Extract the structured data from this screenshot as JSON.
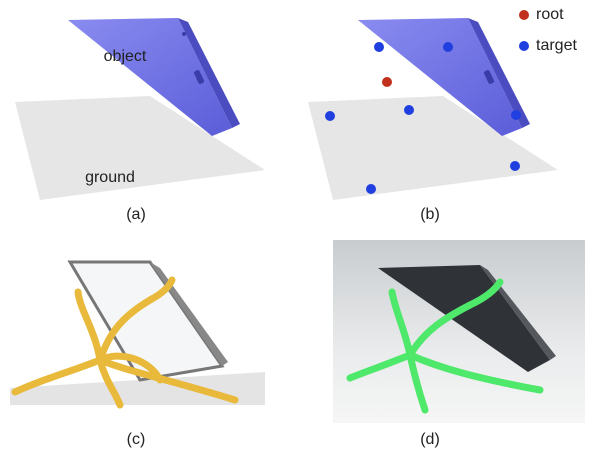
{
  "labels": {
    "object": "object",
    "ground": "ground"
  },
  "legend": [
    {
      "name": "root",
      "color": "#c0301c"
    },
    {
      "name": "target",
      "color": "#1f3fe0"
    }
  ],
  "captions": [
    "(a)",
    "(b)",
    "(c)",
    "(d)"
  ]
}
